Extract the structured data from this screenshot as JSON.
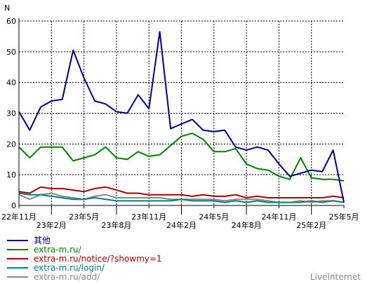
{
  "chart_data": {
    "type": "line",
    "ylabel": "N",
    "ylim": [
      0,
      60
    ],
    "y_ticks": [
      "0",
      "10",
      "20",
      "30",
      "40",
      "50",
      "60"
    ],
    "grid": true,
    "legend_position": "bottom-left",
    "x_tick_labels": [
      {
        "label": "22年11月",
        "row": 0
      },
      {
        "label": "23年2月",
        "row": 1
      },
      {
        "label": "23年5月",
        "row": 0
      },
      {
        "label": "23年8月",
        "row": 1
      },
      {
        "label": "23年11月",
        "row": 0
      },
      {
        "label": "24年2月",
        "row": 1
      },
      {
        "label": "24年5月",
        "row": 0
      },
      {
        "label": "24年8月",
        "row": 1
      },
      {
        "label": "24年11月",
        "row": 0
      },
      {
        "label": "25年2月",
        "row": 1
      },
      {
        "label": "25年5月",
        "row": 0
      }
    ],
    "series": [
      {
        "name": "其他",
        "color": "#000080",
        "values": [
          30.5,
          24.5,
          32,
          34,
          34.5,
          50.5,
          41.5,
          34,
          33,
          30.5,
          30,
          36,
          31.5,
          56.5,
          25,
          26.5,
          28,
          24.5,
          24,
          24.5,
          19,
          18,
          19,
          18,
          13.5,
          9.5,
          10.5,
          11.5,
          11,
          18,
          1
        ]
      },
      {
        "name": "extra-m.ru/",
        "color": "#008000",
        "values": [
          19,
          15.5,
          19,
          19,
          19,
          14.5,
          15.5,
          16.5,
          19,
          15.5,
          15,
          17.5,
          16,
          16.5,
          19.5,
          22.5,
          23.5,
          21.5,
          17.5,
          17.5,
          18.5,
          13.5,
          12,
          11.5,
          9.5,
          8.5,
          15.5,
          9,
          8.5,
          8.5,
          8
        ]
      },
      {
        "name": "extra-m.ru/notice/?showmy=1",
        "color": "#aa0000",
        "values": [
          4.5,
          4,
          6,
          5.5,
          5.5,
          5,
          4.5,
          5.5,
          6,
          5,
          4,
          4,
          3.5,
          3.5,
          3.5,
          3.5,
          3,
          3.5,
          3,
          3,
          3.5,
          2.5,
          3,
          2.5,
          2.5,
          2.5,
          2.5,
          2.5,
          2.5,
          3,
          2.5
        ]
      },
      {
        "name": "extra-m.ru/login/",
        "color": "#008080",
        "values": [
          4,
          3.5,
          3.5,
          3,
          2.5,
          2,
          2,
          2.5,
          2,
          1.5,
          1.5,
          1.5,
          1.5,
          1.5,
          1.5,
          2,
          1.5,
          1.5,
          1.5,
          1,
          1.5,
          1,
          1.5,
          1,
          1,
          1,
          1,
          1.5,
          1,
          1.5,
          1
        ]
      },
      {
        "name": "extra-m.ru/add/",
        "color": "#888888",
        "values": [
          3.5,
          2,
          3.5,
          4,
          3,
          2.5,
          2,
          3,
          3.5,
          2.5,
          2.5,
          2.5,
          2.5,
          2.5,
          2,
          2,
          2,
          2,
          2,
          1.5,
          2,
          2,
          2,
          1.5,
          1,
          1,
          1.5,
          1,
          1.5,
          1.5,
          1
        ]
      }
    ]
  },
  "footer": {
    "brand": "LiveInternet"
  }
}
